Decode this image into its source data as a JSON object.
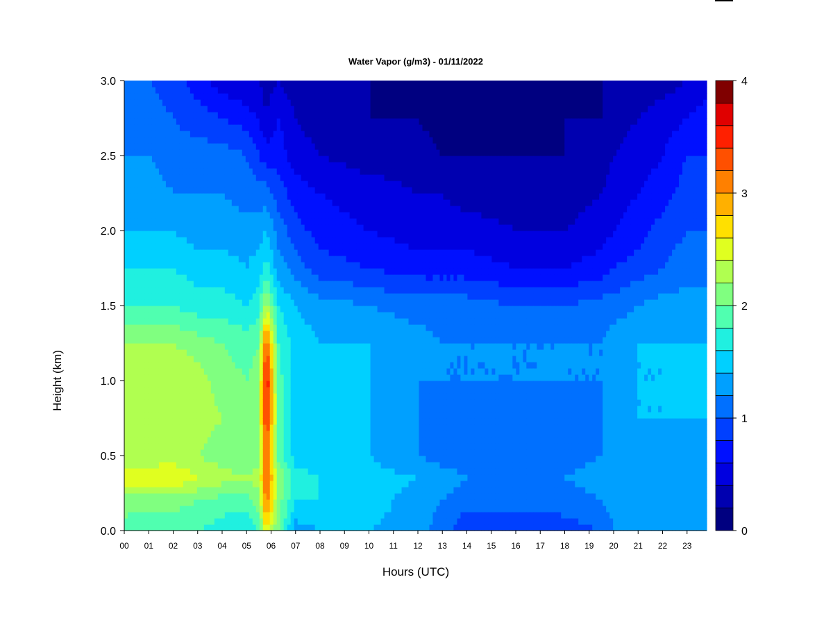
{
  "chart_data": {
    "type": "heatmap",
    "title": "Water Vapor (g/m3) - 01/11/2022",
    "xlabel": "Hours (UTC)",
    "ylabel": "Height (km)",
    "x_ticks": [
      "00",
      "01",
      "02",
      "03",
      "04",
      "05",
      "06",
      "07",
      "08",
      "09",
      "10",
      "11",
      "12",
      "13",
      "14",
      "15",
      "16",
      "17",
      "18",
      "19",
      "20",
      "21",
      "22",
      "23"
    ],
    "y_ticks": [
      "0.0",
      "0.5",
      "1.0",
      "1.5",
      "2.0",
      "2.5",
      "3.0"
    ],
    "xlim": [
      0,
      23.8
    ],
    "ylim": [
      0,
      3.0
    ],
    "colorbar": {
      "min": 0,
      "max": 4,
      "levels": 20,
      "ticks": [
        "0",
        "1",
        "2",
        "3",
        "4"
      ],
      "colors": [
        "#000080",
        "#0000B0",
        "#0000E0",
        "#0010FF",
        "#0040FF",
        "#0070FF",
        "#00A0FF",
        "#00D0FF",
        "#20F0E0",
        "#50FFB0",
        "#80FF80",
        "#B0FF50",
        "#E0FF20",
        "#FFE000",
        "#FFB000",
        "#FF8000",
        "#FF5000",
        "#FF2000",
        "#E00000",
        "#800000"
      ]
    },
    "z_units": "g/m3",
    "x_samples_hours": [
      0,
      1,
      2,
      3,
      4,
      5,
      5.5,
      5.8,
      6.3,
      7,
      8,
      10,
      12,
      13,
      14,
      16,
      18,
      19.5,
      20,
      21,
      22,
      23,
      23.8
    ],
    "y_samples_km": [
      0,
      0.2,
      0.35,
      0.5,
      0.75,
      1.0,
      1.25,
      1.5,
      1.75,
      2.0,
      2.25,
      2.5,
      2.75,
      3.0
    ],
    "z": [
      [
        1.9,
        2.1,
        2.5,
        2.3,
        2.3,
        2.3,
        2.2,
        1.8,
        1.6,
        1.4,
        1.3,
        1.2,
        1.2,
        1.2
      ],
      [
        1.8,
        2.1,
        2.5,
        2.3,
        2.3,
        2.3,
        2.2,
        1.8,
        1.6,
        1.4,
        1.3,
        1.2,
        1.1,
        1.0
      ],
      [
        1.8,
        2.1,
        2.6,
        2.3,
        2.4,
        2.4,
        2.2,
        1.8,
        1.6,
        1.4,
        1.2,
        1.1,
        1.0,
        0.9
      ],
      [
        1.8,
        2.0,
        2.4,
        2.2,
        2.3,
        2.3,
        2.1,
        1.7,
        1.5,
        1.3,
        1.2,
        1.1,
        0.9,
        0.7
      ],
      [
        1.7,
        1.9,
        2.3,
        2.1,
        2.2,
        2.1,
        2.0,
        1.7,
        1.5,
        1.3,
        1.2,
        1.1,
        0.8,
        0.5
      ],
      [
        1.6,
        1.9,
        2.2,
        2.0,
        2.1,
        2.0,
        1.9,
        1.6,
        1.4,
        1.3,
        1.1,
        1.0,
        0.7,
        0.4
      ],
      [
        1.8,
        2.1,
        2.3,
        2.1,
        2.2,
        2.1,
        2.0,
        1.7,
        1.5,
        1.3,
        1.1,
        0.8,
        0.6,
        0.4
      ],
      [
        2.6,
        3.2,
        3.3,
        3.3,
        3.5,
        3.7,
        3.3,
        2.3,
        1.7,
        1.4,
        1.1,
        0.7,
        0.4,
        0.3
      ],
      [
        2.0,
        2.1,
        2.2,
        1.9,
        2.0,
        1.9,
        1.8,
        1.6,
        1.3,
        1.1,
        0.9,
        0.7,
        0.6,
        0.4
      ],
      [
        1.3,
        1.6,
        1.7,
        1.5,
        1.5,
        1.5,
        1.5,
        1.4,
        1.1,
        0.9,
        0.7,
        0.5,
        0.4,
        0.3
      ],
      [
        1.4,
        1.6,
        1.6,
        1.5,
        1.5,
        1.5,
        1.4,
        1.3,
        0.9,
        0.7,
        0.6,
        0.4,
        0.3,
        0.2
      ],
      [
        1.4,
        1.5,
        1.5,
        1.4,
        1.4,
        1.4,
        1.4,
        1.2,
        0.8,
        0.6,
        0.5,
        0.3,
        0.2,
        0.2
      ],
      [
        1.3,
        1.3,
        1.4,
        1.2,
        1.2,
        1.2,
        1.3,
        1.1,
        0.7,
        0.5,
        0.4,
        0.3,
        0.2,
        0.1
      ],
      [
        1.1,
        1.2,
        1.3,
        1.1,
        1.1,
        1.2,
        1.2,
        1.1,
        0.7,
        0.5,
        0.4,
        0.2,
        0.1,
        0.1
      ],
      [
        0.8,
        1.1,
        1.2,
        1.1,
        1.1,
        1.2,
        1.2,
        1.1,
        0.7,
        0.5,
        0.3,
        0.2,
        0.1,
        0.1
      ],
      [
        0.8,
        1.1,
        1.2,
        1.0,
        1.1,
        1.2,
        1.2,
        1.0,
        0.6,
        0.4,
        0.3,
        0.2,
        0.1,
        0.1
      ],
      [
        0.9,
        1.1,
        1.2,
        1.1,
        1.1,
        1.2,
        1.2,
        1.0,
        0.6,
        0.4,
        0.3,
        0.2,
        0.2,
        0.1
      ],
      [
        1.0,
        1.2,
        1.3,
        1.2,
        1.2,
        1.2,
        1.2,
        1.1,
        0.7,
        0.5,
        0.4,
        0.3,
        0.2,
        0.2
      ],
      [
        1.2,
        1.3,
        1.4,
        1.3,
        1.3,
        1.3,
        1.3,
        1.1,
        0.8,
        0.6,
        0.5,
        0.4,
        0.3,
        0.2
      ],
      [
        1.3,
        1.3,
        1.4,
        1.3,
        1.4,
        1.4,
        1.4,
        1.2,
        0.9,
        0.7,
        0.6,
        0.5,
        0.4,
        0.3
      ],
      [
        1.2,
        1.3,
        1.3,
        1.3,
        1.4,
        1.4,
        1.4,
        1.3,
        1.0,
        0.9,
        0.7,
        0.6,
        0.5,
        0.3
      ],
      [
        1.2,
        1.3,
        1.3,
        1.3,
        1.4,
        1.5,
        1.4,
        1.3,
        1.1,
        1.0,
        0.9,
        0.8,
        0.6,
        0.4
      ],
      [
        1.3,
        1.3,
        1.3,
        1.3,
        1.4,
        1.5,
        1.4,
        1.3,
        1.1,
        1.0,
        0.9,
        0.8,
        0.7,
        0.5
      ]
    ]
  }
}
